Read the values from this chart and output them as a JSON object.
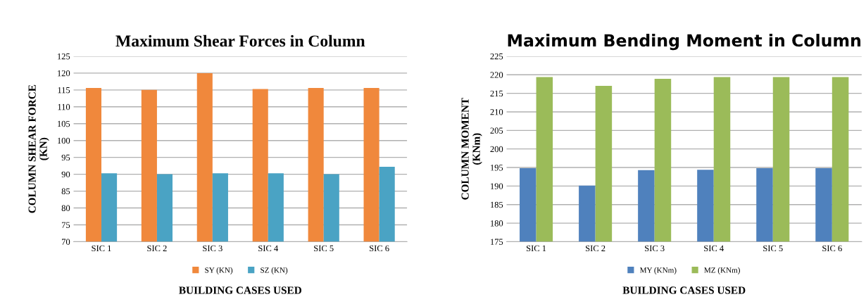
{
  "chart_data": [
    {
      "type": "bar",
      "title": "Maximum Shear Forces in Column",
      "xlabel": "BUILDING CASES USED",
      "ylabel": "COLUMN SHEAR FORCE\n(KN)",
      "categories": [
        "SIC 1",
        "SIC 2",
        "SIC 3",
        "SIC 4",
        "SIC 5",
        "SIC 6"
      ],
      "series": [
        {
          "name": "SY (KN)",
          "color": "#f0883c",
          "values": [
            115.6,
            115,
            120,
            115.3,
            115.6,
            115.6
          ]
        },
        {
          "name": "SZ (KN)",
          "color": "#4aa3c4",
          "values": [
            90.3,
            90,
            90.3,
            90.3,
            90,
            92.2
          ]
        }
      ],
      "ylim": [
        70,
        125
      ],
      "yticks": [
        70,
        75,
        80,
        85,
        90,
        95,
        100,
        105,
        110,
        115,
        120,
        125
      ],
      "grid": "y",
      "legend": "bottom"
    },
    {
      "type": "bar",
      "title": "Maximum Bending Moment in Column",
      "xlabel": "BUILDING CASES USED",
      "ylabel": "COLUMN MOMENT\n(KNm)",
      "categories": [
        "SIC 1",
        "SIC 2",
        "SIC 3",
        "SIC 4",
        "SIC 5",
        "SIC 6"
      ],
      "series": [
        {
          "name": "MY (KNm)",
          "color": "#4f81bd",
          "values": [
            194.8,
            190.1,
            194.3,
            194.4,
            194.8,
            194.8
          ]
        },
        {
          "name": "MZ (KNm)",
          "color": "#9bbb59",
          "values": [
            219.4,
            217,
            218.9,
            219.4,
            219.4,
            219.4
          ]
        }
      ],
      "ylim": [
        175,
        225
      ],
      "yticks": [
        175,
        180,
        185,
        190,
        195,
        200,
        205,
        210,
        215,
        220,
        225
      ],
      "grid": "y",
      "legend": "bottom"
    }
  ]
}
